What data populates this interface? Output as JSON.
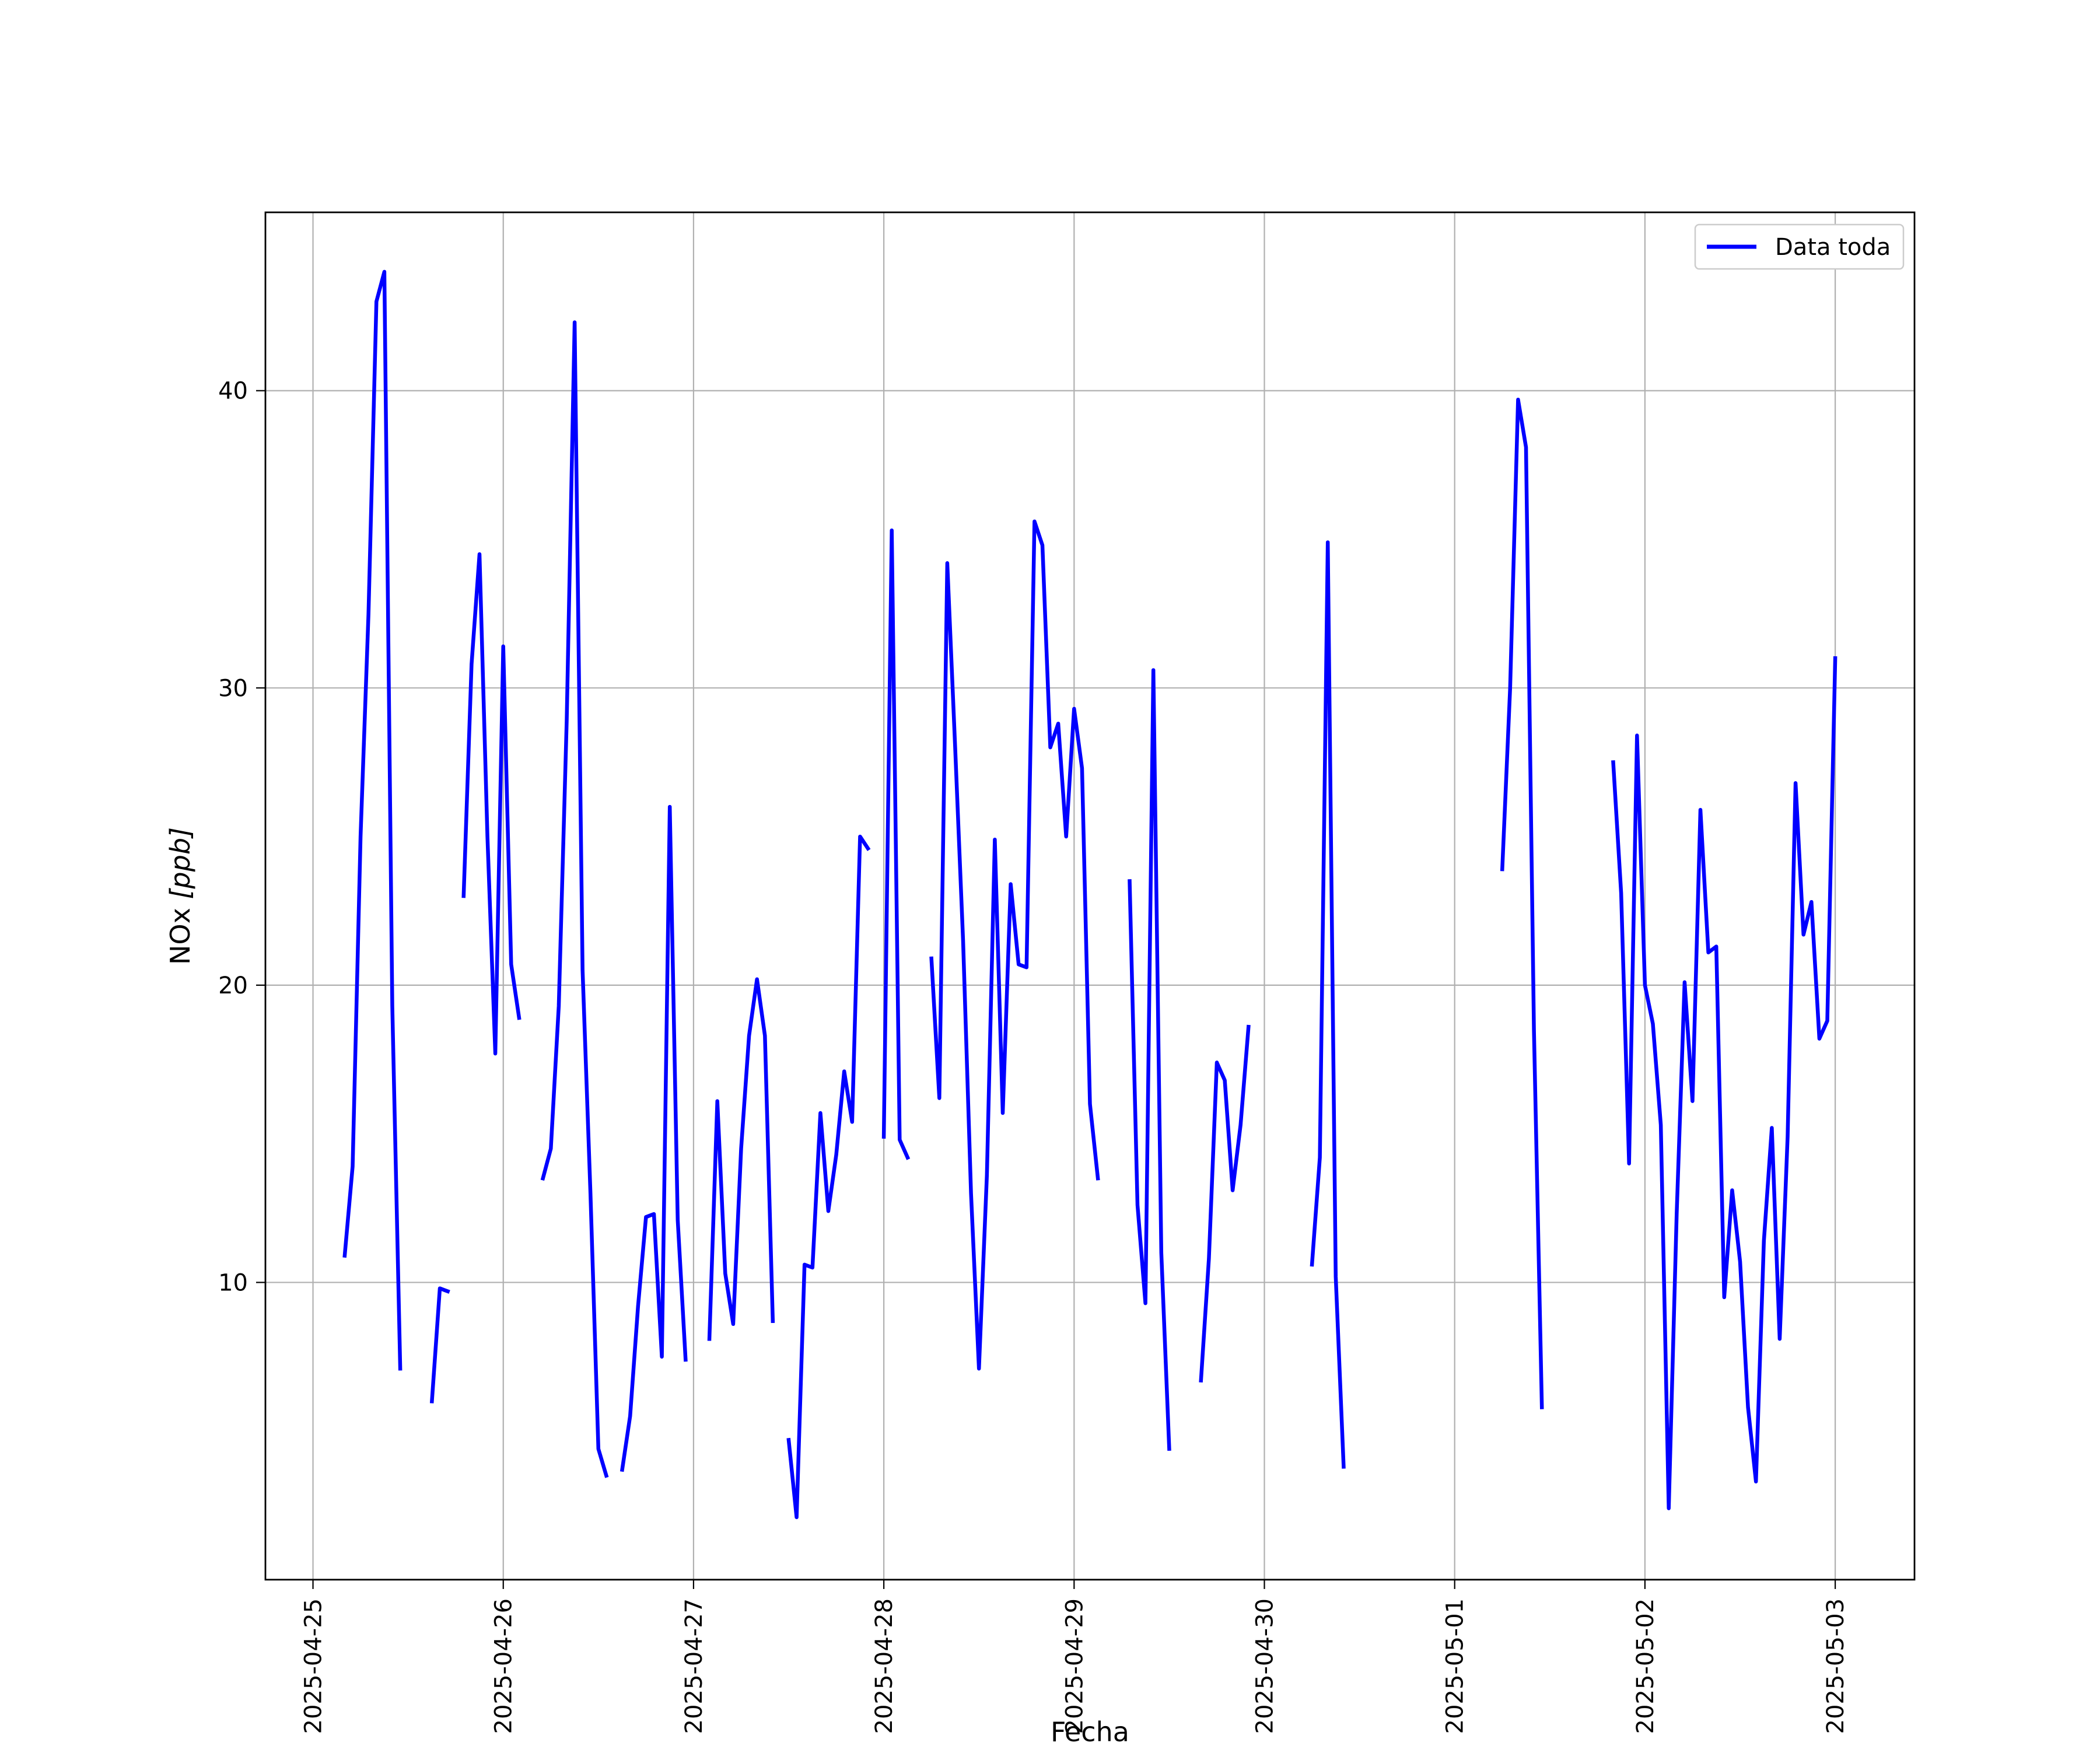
{
  "chart_data": {
    "type": "line",
    "title": "",
    "xlabel": "Fecha",
    "ylabel_main": "NOx ",
    "ylabel_unit": "[ppb]",
    "grid": true,
    "legend_position": "top-right",
    "colors": {
      "series": "#0000ff",
      "grid": "#b0b0b0",
      "axes": "#000000"
    },
    "xlim": [
      "2025-04-24T18:00",
      "2025-05-03T10:00"
    ],
    "ylim": [
      0,
      46
    ],
    "x_ticks": [
      "2025-04-25",
      "2025-04-26",
      "2025-04-27",
      "2025-04-28",
      "2025-04-29",
      "2025-04-30",
      "2025-05-01",
      "2025-05-02",
      "2025-05-03"
    ],
    "y_ticks": [
      10,
      20,
      30,
      40
    ],
    "series": [
      {
        "name": "Data toda",
        "segments": [
          [
            [
              "2025-04-25T04:00",
              10.9
            ],
            [
              "2025-04-25T05:00",
              13.9
            ],
            [
              "2025-04-25T06:00",
              25.0
            ],
            [
              "2025-04-25T07:00",
              32.5
            ],
            [
              "2025-04-25T08:00",
              43.0
            ],
            [
              "2025-04-25T09:00",
              44.0
            ],
            [
              "2025-04-25T10:00",
              19.3
            ],
            [
              "2025-04-25T11:00",
              7.1
            ]
          ],
          [
            [
              "2025-04-25T15:00",
              6.0
            ],
            [
              "2025-04-25T16:00",
              9.8
            ],
            [
              "2025-04-25T17:00",
              9.7
            ]
          ],
          [
            [
              "2025-04-25T19:00",
              23.0
            ],
            [
              "2025-04-25T20:00",
              30.8
            ],
            [
              "2025-04-25T21:00",
              34.5
            ],
            [
              "2025-04-25T22:00",
              25.0
            ],
            [
              "2025-04-25T23:00",
              17.7
            ],
            [
              "2025-04-26T00:00",
              31.4
            ],
            [
              "2025-04-26T01:00",
              20.7
            ],
            [
              "2025-04-26T02:00",
              18.9
            ]
          ],
          [
            [
              "2025-04-26T05:00",
              13.5
            ],
            [
              "2025-04-26T06:00",
              14.5
            ],
            [
              "2025-04-26T07:00",
              19.3
            ],
            [
              "2025-04-26T08:00",
              28.9
            ],
            [
              "2025-04-26T09:00",
              42.3
            ],
            [
              "2025-04-26T10:00",
              20.5
            ],
            [
              "2025-04-26T11:00",
              13.0
            ],
            [
              "2025-04-26T12:00",
              4.4
            ],
            [
              "2025-04-26T13:00",
              3.5
            ]
          ],
          [
            [
              "2025-04-26T15:00",
              3.7
            ],
            [
              "2025-04-26T16:00",
              5.5
            ],
            [
              "2025-04-26T17:00",
              9.2
            ],
            [
              "2025-04-26T18:00",
              12.2
            ],
            [
              "2025-04-26T19:00",
              12.3
            ],
            [
              "2025-04-26T20:00",
              7.5
            ],
            [
              "2025-04-26T21:00",
              26.0
            ],
            [
              "2025-04-26T22:00",
              12.1
            ],
            [
              "2025-04-26T23:00",
              7.4
            ]
          ],
          [
            [
              "2025-04-27T02:00",
              8.1
            ],
            [
              "2025-04-27T03:00",
              16.1
            ],
            [
              "2025-04-27T04:00",
              10.3
            ],
            [
              "2025-04-27T05:00",
              8.6
            ],
            [
              "2025-04-27T06:00",
              14.5
            ],
            [
              "2025-04-27T07:00",
              18.3
            ],
            [
              "2025-04-27T08:00",
              20.2
            ],
            [
              "2025-04-27T09:00",
              18.3
            ],
            [
              "2025-04-27T10:00",
              8.7
            ]
          ],
          [
            [
              "2025-04-27T12:00",
              4.7
            ],
            [
              "2025-04-27T13:00",
              2.1
            ],
            [
              "2025-04-27T14:00",
              10.6
            ],
            [
              "2025-04-27T15:00",
              10.5
            ],
            [
              "2025-04-27T16:00",
              15.7
            ],
            [
              "2025-04-27T17:00",
              12.4
            ],
            [
              "2025-04-27T18:00",
              14.3
            ],
            [
              "2025-04-27T19:00",
              17.1
            ],
            [
              "2025-04-27T20:00",
              15.4
            ],
            [
              "2025-04-27T21:00",
              25.0
            ],
            [
              "2025-04-27T22:00",
              24.6
            ]
          ],
          [
            [
              "2025-04-28T00:00",
              14.9
            ],
            [
              "2025-04-28T01:00",
              35.3
            ],
            [
              "2025-04-28T02:00",
              14.8
            ],
            [
              "2025-04-28T03:00",
              14.2
            ]
          ],
          [
            [
              "2025-04-28T06:00",
              20.9
            ],
            [
              "2025-04-28T07:00",
              16.2
            ],
            [
              "2025-04-28T08:00",
              34.2
            ],
            [
              "2025-04-28T09:00",
              28.0
            ],
            [
              "2025-04-28T10:00",
              21.5
            ],
            [
              "2025-04-28T11:00",
              13.0
            ],
            [
              "2025-04-28T12:00",
              7.1
            ],
            [
              "2025-04-28T13:00",
              13.6
            ],
            [
              "2025-04-28T14:00",
              24.9
            ],
            [
              "2025-04-28T15:00",
              15.7
            ],
            [
              "2025-04-28T16:00",
              23.4
            ],
            [
              "2025-04-28T17:00",
              20.7
            ],
            [
              "2025-04-28T18:00",
              20.6
            ],
            [
              "2025-04-28T19:00",
              35.6
            ],
            [
              "2025-04-28T20:00",
              34.8
            ],
            [
              "2025-04-28T21:00",
              28.0
            ],
            [
              "2025-04-28T22:00",
              28.8
            ],
            [
              "2025-04-28T23:00",
              25.0
            ],
            [
              "2025-04-29T00:00",
              29.3
            ],
            [
              "2025-04-29T01:00",
              27.3
            ],
            [
              "2025-04-29T02:00",
              16.0
            ],
            [
              "2025-04-29T03:00",
              13.5
            ]
          ],
          [
            [
              "2025-04-29T07:00",
              23.5
            ],
            [
              "2025-04-29T08:00",
              12.6
            ],
            [
              "2025-04-29T09:00",
              9.3
            ],
            [
              "2025-04-29T10:00",
              30.6
            ],
            [
              "2025-04-29T11:00",
              11.0
            ],
            [
              "2025-04-29T12:00",
              4.4
            ]
          ],
          [
            [
              "2025-04-29T16:00",
              6.7
            ],
            [
              "2025-04-29T17:00",
              10.8
            ],
            [
              "2025-04-29T18:00",
              17.4
            ],
            [
              "2025-04-29T19:00",
              16.8
            ],
            [
              "2025-04-29T20:00",
              13.1
            ],
            [
              "2025-04-29T21:00",
              15.3
            ],
            [
              "2025-04-29T22:00",
              18.6
            ]
          ],
          [
            [
              "2025-04-30T06:00",
              10.6
            ],
            [
              "2025-04-30T07:00",
              14.2
            ],
            [
              "2025-04-30T08:00",
              34.9
            ],
            [
              "2025-04-30T09:00",
              10.2
            ],
            [
              "2025-04-30T10:00",
              3.8
            ]
          ],
          [
            [
              "2025-05-01T06:00",
              23.9
            ],
            [
              "2025-05-01T07:00",
              30.0
            ],
            [
              "2025-05-01T08:00",
              39.7
            ],
            [
              "2025-05-01T09:00",
              38.1
            ],
            [
              "2025-05-01T10:00",
              18.5
            ],
            [
              "2025-05-01T11:00",
              5.8
            ]
          ],
          [
            [
              "2025-05-01T20:00",
              27.5
            ],
            [
              "2025-05-01T21:00",
              23.1
            ],
            [
              "2025-05-01T22:00",
              14.0
            ],
            [
              "2025-05-01T23:00",
              28.4
            ],
            [
              "2025-05-02T00:00",
              20.0
            ],
            [
              "2025-05-02T01:00",
              18.7
            ],
            [
              "2025-05-02T02:00",
              15.3
            ],
            [
              "2025-05-02T03:00",
              2.4
            ],
            [
              "2025-05-02T04:00",
              12.3
            ],
            [
              "2025-05-02T05:00",
              20.1
            ],
            [
              "2025-05-02T06:00",
              16.1
            ],
            [
              "2025-05-02T07:00",
              25.9
            ],
            [
              "2025-05-02T08:00",
              21.1
            ],
            [
              "2025-05-02T09:00",
              21.3
            ],
            [
              "2025-05-02T10:00",
              9.5
            ],
            [
              "2025-05-02T11:00",
              13.1
            ],
            [
              "2025-05-02T12:00",
              10.7
            ],
            [
              "2025-05-02T13:00",
              5.8
            ],
            [
              "2025-05-02T14:00",
              3.3
            ],
            [
              "2025-05-02T15:00",
              11.4
            ],
            [
              "2025-05-02T16:00",
              15.2
            ],
            [
              "2025-05-02T17:00",
              8.1
            ],
            [
              "2025-05-02T18:00",
              14.9
            ],
            [
              "2025-05-02T19:00",
              26.8
            ],
            [
              "2025-05-02T20:00",
              21.7
            ],
            [
              "2025-05-02T21:00",
              22.8
            ],
            [
              "2025-05-02T22:00",
              18.2
            ],
            [
              "2025-05-02T23:00",
              18.8
            ],
            [
              "2025-05-03T00:00",
              31.0
            ]
          ]
        ]
      }
    ]
  }
}
